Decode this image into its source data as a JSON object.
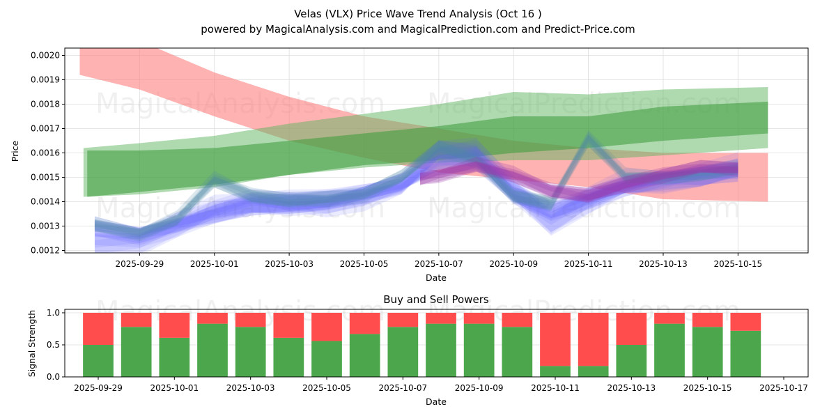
{
  "chart_data": [
    {
      "type": "area",
      "title": "Velas (VLX) Price Wave Trend Analysis (Oct 16 )",
      "subtitle": "powered by MagicalAnalysis.com and MagicalPrediction.com and Predict-Price.com",
      "xlabel": "Date",
      "ylabel": "Price",
      "ylim": [
        0.00119,
        0.00203
      ],
      "xlim": [
        "2025-09-27T00:00",
        "2025-10-16T21:00"
      ],
      "grid": true,
      "x_ticks": [
        "2025-09-29",
        "2025-10-01",
        "2025-10-03",
        "2025-10-05",
        "2025-10-07",
        "2025-10-09",
        "2025-10-11",
        "2025-10-13",
        "2025-10-15"
      ],
      "y_ticks": [
        "0.0012",
        "0.0013",
        "0.0014",
        "0.0015",
        "0.0016",
        "0.0017",
        "0.0018",
        "0.0019",
        "0.0020"
      ],
      "watermarks": [
        "MagicalAnalysis.com",
        "MagicalPrediction.com"
      ],
      "bands": [
        {
          "name": "red-trend-band",
          "color": "#ff7f7f",
          "opacity": 0.6,
          "x": [
            -1.6,
            0.0,
            2.0,
            4.0,
            6.0,
            8.0,
            10.0,
            12.0,
            14.0,
            16.8
          ],
          "upper": [
            0.00209,
            0.00206,
            0.00193,
            0.00183,
            0.00175,
            0.0017,
            0.00165,
            0.00162,
            0.0016,
            0.0016
          ],
          "lower": [
            0.00192,
            0.00186,
            0.00175,
            0.00165,
            0.00158,
            0.00152,
            0.00149,
            0.00146,
            0.00141,
            0.0014
          ]
        },
        {
          "name": "green-outer-band",
          "color": "#5fb35f",
          "opacity": 0.5,
          "x": [
            -1.5,
            0.0,
            2.0,
            4.0,
            6.0,
            8.0,
            10.0,
            12.0,
            14.0,
            16.8
          ],
          "upper": [
            0.00162,
            0.00164,
            0.00167,
            0.00172,
            0.00176,
            0.0018,
            0.00185,
            0.00184,
            0.00186,
            0.00187
          ],
          "lower": [
            0.00142,
            0.00143,
            0.00146,
            0.00151,
            0.00154,
            0.00156,
            0.00157,
            0.00157,
            0.00159,
            0.00162
          ]
        },
        {
          "name": "green-inner-band",
          "color": "#3a9a3a",
          "opacity": 0.55,
          "x": [
            -1.4,
            0.0,
            2.0,
            4.0,
            6.0,
            8.0,
            10.0,
            12.0,
            14.0,
            16.8
          ],
          "upper": [
            0.00161,
            0.00161,
            0.00162,
            0.00165,
            0.00168,
            0.00171,
            0.00175,
            0.00175,
            0.00179,
            0.00181
          ],
          "lower": [
            0.00142,
            0.00144,
            0.00147,
            0.00151,
            0.00155,
            0.00157,
            0.0016,
            0.00162,
            0.00165,
            0.00168
          ]
        }
      ],
      "waves": [
        {
          "name": "blue-wave-a",
          "color": "#6b6bff",
          "opacity": 0.28,
          "x": [
            -1.2,
            0.0,
            1.0,
            2.0,
            3.0,
            4.0,
            5.0,
            6.0,
            7.0,
            8.0,
            9.0,
            10.0,
            11.0,
            12.0,
            13.0,
            14.0,
            15.0,
            16.0
          ],
          "center": [
            0.0013,
            0.00128,
            0.00131,
            0.00134,
            0.00138,
            0.0014,
            0.00141,
            0.00143,
            0.00146,
            0.00155,
            0.00159,
            0.00144,
            0.00136,
            0.0014,
            0.00146,
            0.0015,
            0.00151,
            0.00152
          ],
          "halfwidth": 4e-05
        },
        {
          "name": "blue-wave-b",
          "color": "#5a5aff",
          "opacity": 0.22,
          "x": [
            -1.2,
            0.0,
            1.0,
            2.0,
            3.0,
            4.0,
            5.0,
            6.0,
            7.0,
            8.0,
            9.0,
            10.0,
            11.0,
            12.0,
            13.0,
            14.0,
            15.0,
            16.0
          ],
          "center": [
            0.00124,
            0.00125,
            0.0013,
            0.00135,
            0.00139,
            0.0014,
            0.00141,
            0.00142,
            0.00145,
            0.0016,
            0.00162,
            0.00146,
            0.00131,
            0.00139,
            0.00147,
            0.0015,
            0.00152,
            0.00153
          ],
          "halfwidth": 5e-05
        },
        {
          "name": "teal-wave",
          "color": "#4f86a8",
          "opacity": 0.35,
          "x": [
            -1.2,
            0.0,
            1.0,
            2.0,
            3.0,
            4.0,
            5.0,
            6.0,
            7.0,
            8.0,
            9.0,
            10.0,
            11.0,
            12.0,
            13.0,
            14.0,
            15.0,
            16.0
          ],
          "center": [
            0.00131,
            0.00128,
            0.00133,
            0.00148,
            0.00142,
            0.00141,
            0.00142,
            0.00143,
            0.00149,
            0.00162,
            0.00158,
            0.00143,
            0.00139,
            0.00165,
            0.0015,
            0.00151,
            0.00152,
            0.00153
          ],
          "halfwidth": 3e-05
        },
        {
          "name": "purple-wave",
          "color": "#9a3aa8",
          "opacity": 0.45,
          "x": [
            7.5,
            8.0,
            9.0,
            10.0,
            11.0,
            12.0,
            13.0,
            14.0,
            15.0,
            16.0
          ],
          "center": [
            0.0015,
            0.00152,
            0.00155,
            0.0015,
            0.00144,
            0.00143,
            0.00148,
            0.00151,
            0.00153,
            0.00153
          ],
          "halfwidth": 3e-05
        }
      ]
    },
    {
      "type": "bar",
      "title": "Buy and Sell Powers",
      "xlabel": "Date",
      "ylabel": "Signal Strength",
      "ylim": [
        0,
        1.05
      ],
      "grid": true,
      "x_ticks": [
        "2025-09-29",
        "2025-10-01",
        "2025-10-03",
        "2025-10-05",
        "2025-10-07",
        "2025-10-09",
        "2025-10-11",
        "2025-10-13",
        "2025-10-15",
        "2025-10-17"
      ],
      "y_ticks": [
        "0.0",
        "0.5",
        "1.0"
      ],
      "categories": [
        "2025-09-29",
        "2025-09-30",
        "2025-10-01",
        "2025-10-02",
        "2025-10-03",
        "2025-10-04",
        "2025-10-05",
        "2025-10-06",
        "2025-10-07",
        "2025-10-08",
        "2025-10-09",
        "2025-10-10",
        "2025-10-11",
        "2025-10-12",
        "2025-10-13",
        "2025-10-14",
        "2025-10-15",
        "2025-10-16"
      ],
      "series": [
        {
          "name": "Buy",
          "color": "#4ca64c",
          "values": [
            0.5,
            0.78,
            0.61,
            0.83,
            0.78,
            0.61,
            0.56,
            0.67,
            0.78,
            0.83,
            0.83,
            0.78,
            0.17,
            0.17,
            0.5,
            0.83,
            0.78,
            0.72
          ]
        },
        {
          "name": "Sell",
          "color": "#ff4c4c",
          "values": [
            0.5,
            0.22,
            0.39,
            0.17,
            0.22,
            0.39,
            0.44,
            0.33,
            0.22,
            0.17,
            0.17,
            0.22,
            0.83,
            0.83,
            0.5,
            0.17,
            0.22,
            0.28
          ]
        }
      ],
      "watermarks": [
        "MagicalAnalysis.com",
        "MagicalPrediction.com"
      ]
    }
  ]
}
